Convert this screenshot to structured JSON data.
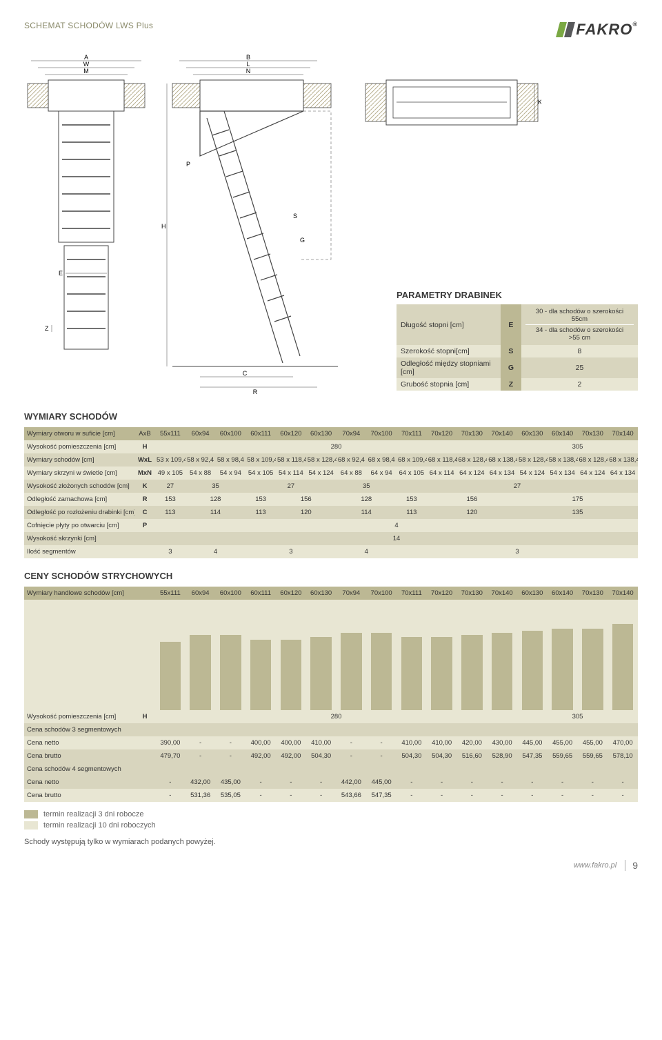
{
  "header": {
    "title": "SCHEMAT SCHODÓW LWS Plus",
    "logo_text": "FAKRO",
    "logo_colors": [
      "#7aa843",
      "#58595b"
    ]
  },
  "diagram_labels": {
    "front_top": [
      "A",
      "W",
      "M"
    ],
    "front_mid": "E",
    "front_bot": "Z",
    "side_top": [
      "B",
      "L",
      "N"
    ],
    "side_v": "H",
    "side_p": "P",
    "side_s": "S",
    "side_g": "G",
    "side_c": "C",
    "side_r": "R",
    "plan_k": "K"
  },
  "parametry": {
    "title": "PARAMETRY DRABINEK",
    "rows": [
      {
        "label": "Długość stopni [cm]",
        "sym": "E",
        "val_top": "30 - dla schodów o szerokości 55cm",
        "val_bot": "34 - dla schodów o szerokości >55 cm"
      },
      {
        "label": "Szerokość stopni[cm]",
        "sym": "S",
        "val": "8"
      },
      {
        "label": "Odległość między stopniami [cm]",
        "sym": "G",
        "val": "25"
      },
      {
        "label": "Grubość stopnia [cm]",
        "sym": "Z",
        "val": "2"
      }
    ]
  },
  "wymiary": {
    "title": "WYMIARY SCHODÓW",
    "sizes": [
      "55x111",
      "60x94",
      "60x100",
      "60x111",
      "60x120",
      "60x130",
      "70x94",
      "70x100",
      "70x111",
      "70x120",
      "70x130",
      "70x140",
      "60x130",
      "60x140",
      "70x130",
      "70x140"
    ],
    "rows": [
      {
        "label": "Wymiary otworu w suficie [cm]",
        "sym": "AxB",
        "cells": [
          "55x111",
          "60x94",
          "60x100",
          "60x111",
          "60x120",
          "60x130",
          "70x94",
          "70x100",
          "70x111",
          "70x120",
          "70x130",
          "70x140",
          "60x130",
          "60x140",
          "70x130",
          "70x140"
        ]
      },
      {
        "label": "Wysokość pomieszczenia [cm]",
        "sym": "H",
        "spans": [
          {
            "text": "280",
            "span": 12
          },
          {
            "text": "305",
            "span": 4
          }
        ]
      },
      {
        "label": "Wymiary schodów [cm]",
        "sym": "WxL",
        "cells": [
          "53 x 109,4",
          "58 x 92,4",
          "58 x 98,4",
          "58 x 109,4",
          "58 x 118,4",
          "58 x 128,4",
          "68 x 92,4",
          "68 x 98,4",
          "68 x 109,4",
          "68 x 118,4",
          "68 x 128,4",
          "68 x 138,4",
          "58 x 128,4",
          "58 x 138,4",
          "68 x 128,4",
          "68 x 138,4"
        ]
      },
      {
        "label": "Wymiary skrzyni w świetle [cm]",
        "sym": "MxN",
        "cells": [
          "49 x 105",
          "54 x 88",
          "54 x 94",
          "54 x 105",
          "54 x 114",
          "54 x 124",
          "64 x 88",
          "64 x 94",
          "64 x 105",
          "64 x 114",
          "64 x 124",
          "64 x 134",
          "54 x 124",
          "54 x 134",
          "64 x 124",
          "64 x 134"
        ]
      },
      {
        "label": "Wysokość złożonych schodów [cm]",
        "sym": "K",
        "spans": [
          {
            "text": "27",
            "span": 1
          },
          {
            "text": "35",
            "span": 2
          },
          {
            "text": "27",
            "span": 3
          },
          {
            "text": "35",
            "span": 2
          },
          {
            "text": "27",
            "span": 8
          }
        ]
      },
      {
        "label": "Odległość zamachowa [cm]",
        "sym": "R",
        "spans": [
          {
            "text": "153",
            "span": 1
          },
          {
            "text": "128",
            "span": 2
          },
          {
            "text": "153",
            "span": 1
          },
          {
            "text": "156",
            "span": 2
          },
          {
            "text": "128",
            "span": 2
          },
          {
            "text": "153",
            "span": 1
          },
          {
            "text": "156",
            "span": 3
          },
          {
            "text": "175",
            "span": 4
          }
        ]
      },
      {
        "label": "Odległość po rozłożeniu drabinki [cm]",
        "sym": "C",
        "spans": [
          {
            "text": "113",
            "span": 1
          },
          {
            "text": "114",
            "span": 2
          },
          {
            "text": "113",
            "span": 1
          },
          {
            "text": "120",
            "span": 2
          },
          {
            "text": "114",
            "span": 2
          },
          {
            "text": "113",
            "span": 1
          },
          {
            "text": "120",
            "span": 3
          },
          {
            "text": "135",
            "span": 4
          }
        ]
      },
      {
        "label": "Cofnięcie płyty po otwarciu [cm]",
        "sym": "P",
        "spans": [
          {
            "text": "4",
            "span": 16
          }
        ]
      },
      {
        "label": "Wysokość skrzynki [cm]",
        "sym": "",
        "spans": [
          {
            "text": "14",
            "span": 16
          }
        ]
      },
      {
        "label": "Ilość segmentów",
        "sym": "",
        "spans": [
          {
            "text": "3",
            "span": 1
          },
          {
            "text": "4",
            "span": 2
          },
          {
            "text": "3",
            "span": 3
          },
          {
            "text": "4",
            "span": 2
          },
          {
            "text": "3",
            "span": 8
          }
        ]
      }
    ]
  },
  "ceny": {
    "title": "CENY SCHODÓW STRYCHOWYCH",
    "header_label": "Wymiary handlowe schodów [cm]",
    "sizes": [
      "55x111",
      "60x94",
      "60x100",
      "60x111",
      "60x120",
      "60x130",
      "70x94",
      "70x100",
      "70x111",
      "70x120",
      "70x130",
      "70x140",
      "60x130",
      "60x140",
      "70x130",
      "70x140"
    ],
    "bar_heights_pct": [
      62,
      68,
      68,
      64,
      64,
      66,
      70,
      70,
      66,
      66,
      68,
      70,
      72,
      74,
      74,
      78
    ],
    "pom_row": {
      "label": "Wysokość pomieszczenia [cm]",
      "sym": "H",
      "spans": [
        {
          "text": "280",
          "span": 12
        },
        {
          "text": "305",
          "span": 4
        }
      ]
    },
    "groups": [
      {
        "title": "Cena schodów 3 segmentowych",
        "rows": [
          {
            "label": "Cena netto",
            "cells": [
              "390,00",
              "-",
              "-",
              "400,00",
              "400,00",
              "410,00",
              "-",
              "-",
              "410,00",
              "410,00",
              "420,00",
              "430,00",
              "445,00",
              "455,00",
              "455,00",
              "470,00"
            ]
          },
          {
            "label": "Cena brutto",
            "cells": [
              "479,70",
              "-",
              "-",
              "492,00",
              "492,00",
              "504,30",
              "-",
              "-",
              "504,30",
              "504,30",
              "516,60",
              "528,90",
              "547,35",
              "559,65",
              "559,65",
              "578,10"
            ]
          }
        ]
      },
      {
        "title": "Cena schodów 4 segmentowych",
        "rows": [
          {
            "label": "Cena netto",
            "cells": [
              "-",
              "432,00",
              "435,00",
              "-",
              "-",
              "-",
              "442,00",
              "445,00",
              "-",
              "-",
              "-",
              "-",
              "-",
              "-",
              "-",
              "-"
            ]
          },
          {
            "label": "Cena brutto",
            "cells": [
              "-",
              "531,36",
              "535,05",
              "-",
              "-",
              "-",
              "543,66",
              "547,35",
              "-",
              "-",
              "-",
              "-",
              "-",
              "-",
              "-",
              "-"
            ]
          }
        ]
      }
    ],
    "legend": [
      {
        "color": "#bcb894",
        "text": "termin realizacji 3 dni robocze"
      },
      {
        "color": "#e8e6d3",
        "text": "termin realizacji 10 dni roboczych"
      }
    ],
    "note": "Schody występują tylko w wymiarach podanych powyżej."
  },
  "footer": {
    "url": "www.fakro.pl",
    "page": "9"
  },
  "colors": {
    "row_a": "#d8d5be",
    "row_b": "#e8e6d3",
    "sym": "#bcb894",
    "diagram_stroke": "#444",
    "hatch": "#b8b090"
  }
}
